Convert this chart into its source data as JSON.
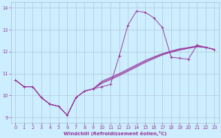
{
  "xlabel": "Windchill (Refroidissement éolien,°C)",
  "bg_color": "#cceeff",
  "line_color": "#993399",
  "grid_color": "#aabbcc",
  "xlim": [
    -0.5,
    23.5
  ],
  "ylim": [
    8.75,
    14.25
  ],
  "xticks": [
    0,
    1,
    2,
    3,
    4,
    5,
    6,
    7,
    8,
    9,
    10,
    11,
    12,
    13,
    14,
    15,
    16,
    17,
    18,
    19,
    20,
    21,
    22,
    23
  ],
  "yticks": [
    9,
    10,
    11,
    12,
    13,
    14
  ],
  "main_series": [
    10.7,
    10.4,
    10.4,
    9.9,
    9.6,
    9.5,
    9.1,
    9.9,
    10.2,
    10.3,
    10.4,
    10.5,
    11.8,
    13.2,
    13.85,
    13.8,
    13.55,
    13.1,
    11.75,
    11.7,
    11.65,
    12.3,
    12.2,
    12.1
  ],
  "smooth_lines": [
    [
      10.7,
      10.4,
      10.4,
      9.9,
      9.6,
      9.5,
      9.1,
      9.9,
      10.2,
      10.3,
      10.55,
      10.72,
      10.9,
      11.1,
      11.3,
      11.5,
      11.68,
      11.85,
      11.97,
      12.07,
      12.15,
      12.22,
      12.2,
      12.1
    ],
    [
      10.7,
      10.4,
      10.4,
      9.9,
      9.6,
      9.5,
      9.1,
      9.9,
      10.2,
      10.3,
      10.6,
      10.77,
      10.95,
      11.15,
      11.35,
      11.55,
      11.72,
      11.88,
      12.0,
      12.1,
      12.17,
      12.24,
      12.2,
      12.1
    ],
    [
      10.7,
      10.4,
      10.4,
      9.9,
      9.6,
      9.5,
      9.1,
      9.9,
      10.2,
      10.3,
      10.65,
      10.82,
      11.0,
      11.2,
      11.4,
      11.6,
      11.76,
      11.91,
      12.03,
      12.13,
      12.19,
      12.26,
      12.2,
      12.1
    ]
  ],
  "xlabel_fontsize": 5.0,
  "tick_fontsize": 4.8,
  "linewidth": 0.7,
  "markersize": 2.5
}
